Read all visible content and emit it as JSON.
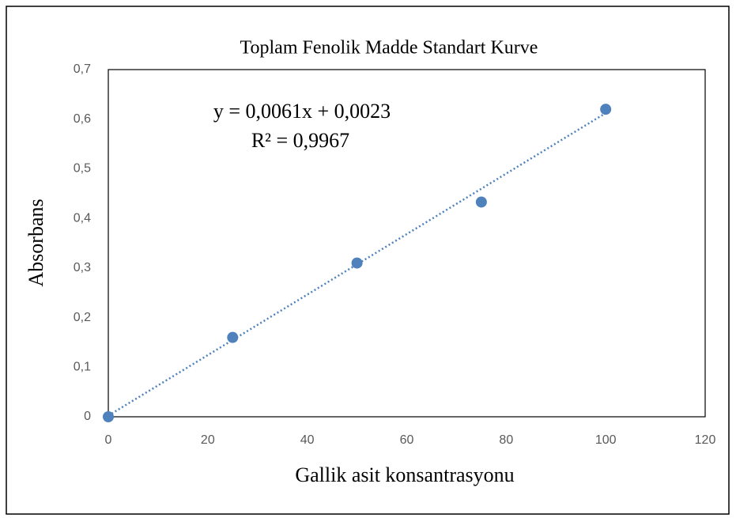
{
  "chart_data": {
    "type": "scatter",
    "title": "Toplam Fenolik Madde Standart Kurve",
    "x_label": "Gallik asit konsantrasyonu",
    "y_label": "Absorbans",
    "annotations": [
      "y = 0,0061x + 0,0023",
      "R² = 0,9967"
    ],
    "trendline": {
      "slope": 0.0061,
      "intercept": 0.0023
    },
    "series": [
      {
        "name": "Absorbans",
        "color": "#4f81bd",
        "x": [
          0,
          25,
          50,
          75,
          100
        ],
        "values": [
          0,
          0.16,
          0.31,
          0.433,
          0.62
        ]
      }
    ],
    "xlim": [
      0,
      120
    ],
    "xticks": [
      0,
      20,
      40,
      60,
      80,
      100,
      120
    ],
    "ylim": [
      0,
      0.7
    ],
    "yticks": [
      0,
      {
        "value": 0.1,
        "label": "0,1"
      },
      {
        "value": 0.2,
        "label": "0,2"
      },
      {
        "value": 0.3,
        "label": "0,3"
      },
      {
        "value": 0.4,
        "label": "0,4"
      },
      {
        "value": 0.5,
        "label": "0,5"
      },
      {
        "value": 0.6,
        "label": "0,6"
      },
      {
        "value": 0.7,
        "label": "0,7"
      }
    ],
    "grid": false
  }
}
